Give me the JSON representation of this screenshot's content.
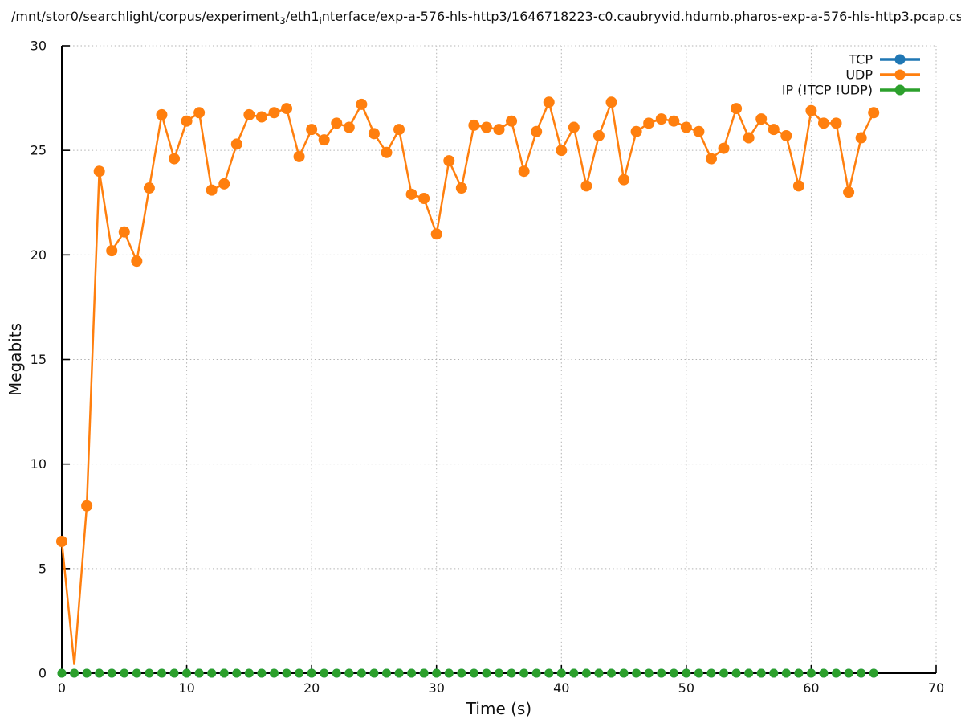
{
  "title": {
    "part1": "/mnt/stor0/searchlight/corpus/experiment",
    "sub1": "3",
    "part2": "/eth1",
    "sub2": "i",
    "part3": "nterface/exp-a-576-hls-http3/1646718223-c0.caubryvid.hdumb.pharos-exp-a-576-hls-http3.pcap.cs"
  },
  "chart_data": {
    "type": "line",
    "title": "/mnt/stor0/searchlight/corpus/experiment_3/eth1_interface/exp-a-576-hls-http3/1646718223-c0.caubryvid.hdumb.pharos-exp-a-576-hls-http3.pcap.c",
    "xlabel": "Time (s)",
    "ylabel": "Megabits",
    "xlim": [
      0,
      70
    ],
    "ylim": [
      0,
      30
    ],
    "xticks": [
      0,
      10,
      20,
      30,
      40,
      50,
      60,
      70
    ],
    "yticks": [
      0,
      5,
      10,
      15,
      20,
      25,
      30
    ],
    "grid": "dotted",
    "legend_position": "top-right-inside",
    "x": [
      0,
      1,
      2,
      3,
      4,
      5,
      6,
      7,
      8,
      9,
      10,
      11,
      12,
      13,
      14,
      15,
      16,
      17,
      18,
      19,
      20,
      21,
      22,
      23,
      24,
      25,
      26,
      27,
      28,
      29,
      30,
      31,
      32,
      33,
      34,
      35,
      36,
      37,
      38,
      39,
      40,
      41,
      42,
      43,
      44,
      45,
      46,
      47,
      48,
      49,
      50,
      51,
      52,
      53,
      54,
      55,
      56,
      57,
      58,
      59,
      60,
      61,
      62,
      63,
      64,
      65
    ],
    "series": [
      {
        "name": "TCP",
        "color": "#1f77b4",
        "marker": "circle",
        "values": [
          0,
          0,
          0,
          0,
          0,
          0,
          0,
          0,
          0,
          0,
          0,
          0,
          0,
          0,
          0,
          0,
          0,
          0,
          0,
          0,
          0,
          0,
          0,
          0,
          0,
          0,
          0,
          0,
          0,
          0,
          0,
          0,
          0,
          0,
          0,
          0,
          0,
          0,
          0,
          0,
          0,
          0,
          0,
          0,
          0,
          0,
          0,
          0,
          0,
          0,
          0,
          0,
          0,
          0,
          0,
          0,
          0,
          0,
          0,
          0,
          0,
          0,
          0,
          0,
          0,
          0
        ]
      },
      {
        "name": "UDP",
        "color": "#ff7f0e",
        "marker": "circle",
        "marker_skip_x": [
          1
        ],
        "values": [
          6.3,
          0.4,
          8.0,
          24.0,
          20.2,
          21.1,
          19.7,
          23.2,
          26.7,
          24.6,
          26.4,
          26.8,
          23.1,
          23.4,
          25.3,
          26.7,
          26.6,
          26.8,
          27.0,
          24.7,
          26.0,
          25.5,
          26.3,
          26.1,
          27.2,
          25.8,
          24.9,
          26.0,
          22.9,
          22.7,
          21.0,
          24.5,
          23.2,
          26.2,
          26.1,
          26.0,
          26.4,
          24.0,
          25.9,
          27.3,
          25.0,
          26.1,
          23.3,
          25.7,
          27.3,
          23.6,
          25.9,
          26.3,
          26.5,
          26.4,
          26.1,
          25.9,
          24.6,
          25.1,
          27.0,
          25.6,
          26.5,
          26.0,
          25.7,
          23.3,
          26.9,
          26.3,
          26.3,
          23.0,
          25.6,
          26.8
        ]
      },
      {
        "name": "IP (!TCP  !UDP)",
        "color": "#2ca02c",
        "marker": "circle",
        "values": [
          0,
          0,
          0,
          0,
          0,
          0,
          0,
          0,
          0,
          0,
          0,
          0,
          0,
          0,
          0,
          0,
          0,
          0,
          0,
          0,
          0,
          0,
          0,
          0,
          0,
          0,
          0,
          0,
          0,
          0,
          0,
          0,
          0,
          0,
          0,
          0,
          0,
          0,
          0,
          0,
          0,
          0,
          0,
          0,
          0,
          0,
          0,
          0,
          0,
          0,
          0,
          0,
          0,
          0,
          0,
          0,
          0,
          0,
          0,
          0,
          0,
          0,
          0,
          0,
          0,
          0
        ]
      }
    ]
  },
  "colors": {
    "tcp": "#1f77b4",
    "udp": "#ff7f0e",
    "ip_other": "#2ca02c",
    "grid": "#b3b3b3",
    "axis": "#000000",
    "background": "#ffffff"
  }
}
